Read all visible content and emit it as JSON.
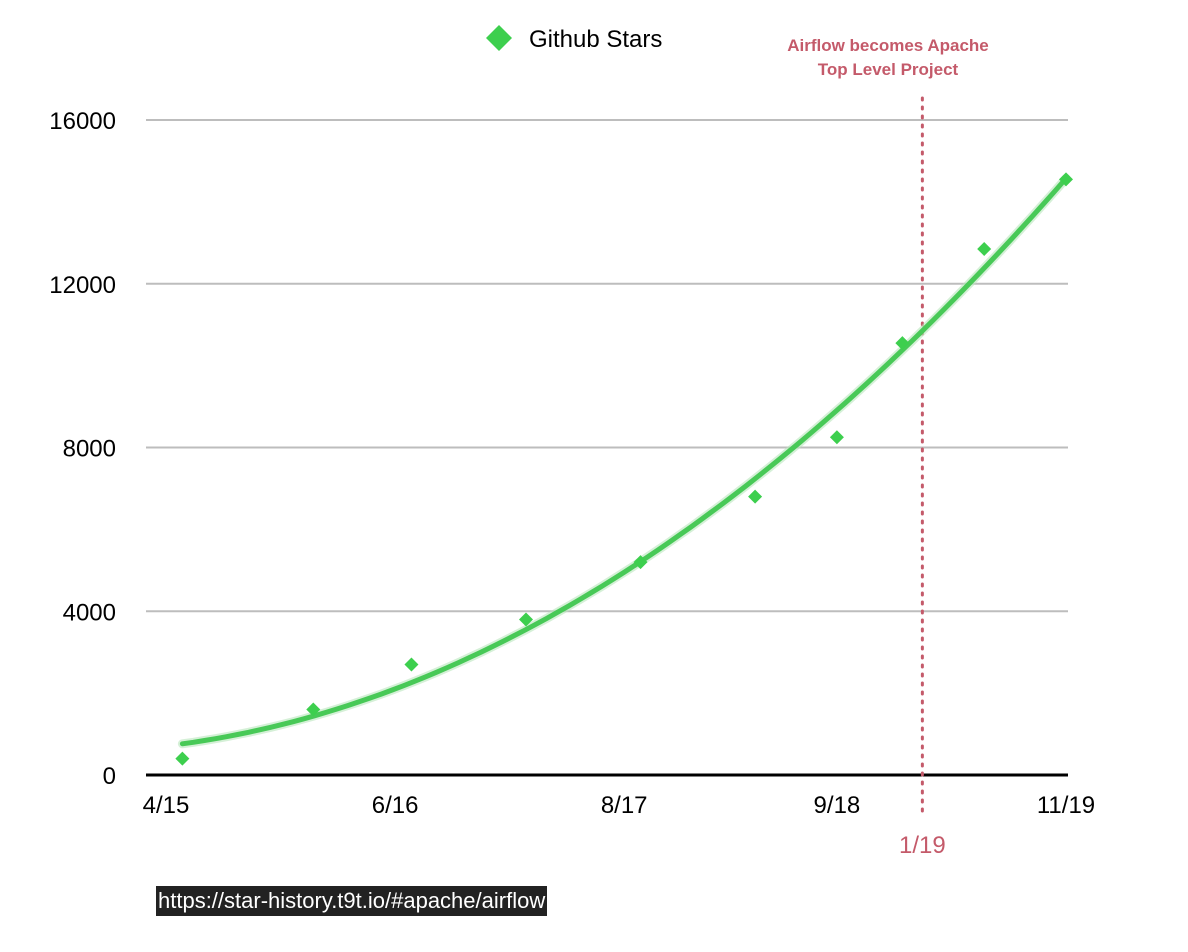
{
  "chart_data": {
    "type": "scatter",
    "title": "",
    "xlabel": "",
    "ylabel": "",
    "x_tick_labels": [
      "4/15",
      "6/16",
      "8/17",
      "9/18",
      "11/19"
    ],
    "y_ticks": [
      0,
      4000,
      8000,
      12000,
      16000
    ],
    "y_tick_labels": [
      "0",
      "4000",
      "8000",
      "12000",
      "16000"
    ],
    "ylim": [
      0,
      16000
    ],
    "grid": true,
    "legend_position": "top-center",
    "series": [
      {
        "name": "Github Stars",
        "marker": "diamond",
        "trendline": true,
        "color": "#3dcf4e",
        "points": [
          {
            "x": "2015-05",
            "y": 400
          },
          {
            "x": "2016-01",
            "y": 1600
          },
          {
            "x": "2016-07",
            "y": 2700
          },
          {
            "x": "2017-02",
            "y": 3800
          },
          {
            "x": "2017-09",
            "y": 5200
          },
          {
            "x": "2018-04",
            "y": 6800
          },
          {
            "x": "2018-09",
            "y": 8250
          },
          {
            "x": "2019-01",
            "y": 10550
          },
          {
            "x": "2019-06",
            "y": 12850
          },
          {
            "x": "2019-11",
            "y": 14550
          }
        ]
      }
    ],
    "annotation": {
      "lines": [
        "Airflow becomes Apache",
        "Top Level Project"
      ],
      "x_label": "1/19",
      "color": "#c45a6a"
    }
  },
  "source_text": "https://star-history.t9t.io/#apache/airflow"
}
